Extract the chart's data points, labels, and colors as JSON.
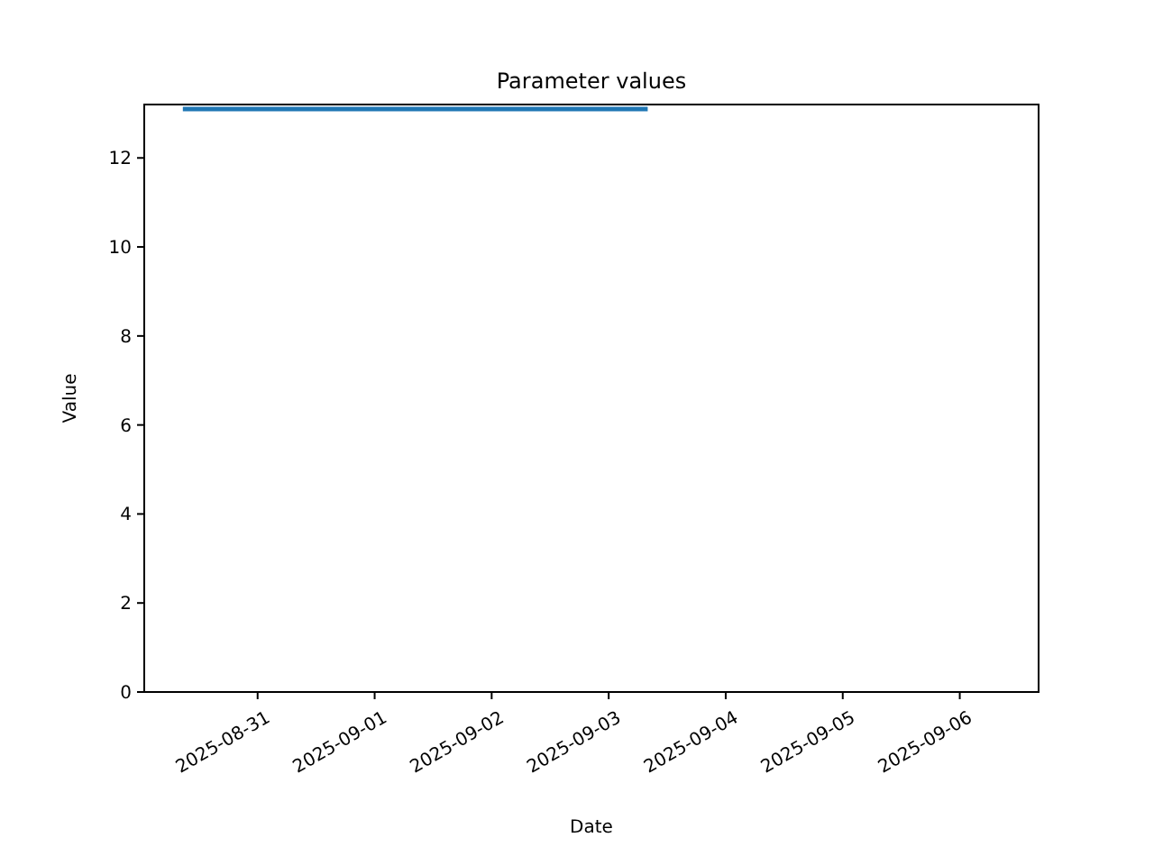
{
  "chart_data": {
    "type": "line",
    "title": "Parameter values",
    "xlabel": "Date",
    "ylabel": "Value",
    "xlim": [
      "2025-08-30T00:45",
      "2025-09-06T16:10"
    ],
    "xticks": [
      "2025-08-31",
      "2025-09-01",
      "2025-09-02",
      "2025-09-03",
      "2025-09-04",
      "2025-09-05",
      "2025-09-06"
    ],
    "ylim": [
      0,
      13.2
    ],
    "yticks": [
      0,
      2,
      4,
      6,
      8,
      10,
      12
    ],
    "grid": false,
    "marker": "none",
    "line_style": "solid",
    "series": [
      {
        "color": "#1f77b4",
        "x": [
          "2025-08-30T08:40",
          "2025-09-03T08:00"
        ],
        "values": [
          13.1,
          13.1
        ]
      }
    ]
  }
}
